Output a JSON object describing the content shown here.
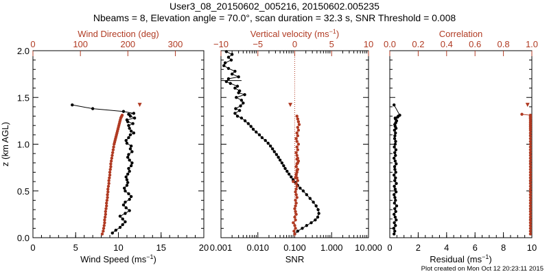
{
  "title_line1": "User3_08_20150602_005216, 20150602.005235",
  "title_line2": "Nbeams = 8, Elevation angle = 70.0°, scan duration = 32.3 s, SNR Threshold = 0.008",
  "footer": "Plot created on Mon Oct 12 20:23:11 2015",
  "colors": {
    "black": "#000000",
    "red": "#b03a22"
  },
  "chart_data": [
    {
      "type": "scatter",
      "name": "wind-panel",
      "ylabel": "z (km AGL)",
      "ylim": [
        0,
        2
      ],
      "yticks": [
        0.0,
        0.5,
        1.0,
        1.5,
        2.0
      ],
      "yticklabels": [
        "0.0",
        "0.5",
        "1.0",
        "1.5",
        "2.0"
      ],
      "bottom_axis": {
        "label": "Wind Speed (ms⁻¹)",
        "lim": [
          0,
          20
        ],
        "ticks": [
          0,
          5,
          10,
          15,
          20
        ],
        "ticklabels": [
          "0",
          "5",
          "10",
          "15",
          "20"
        ]
      },
      "top_axis": {
        "label": "Wind Direction (deg)",
        "lim": [
          0,
          360
        ],
        "ticks": [
          0,
          100,
          200,
          300
        ],
        "ticklabels": [
          "0",
          "100",
          "200",
          "300"
        ]
      },
      "series": [
        {
          "name": "Wind Speed",
          "axis": "bottom",
          "color": "black",
          "connected": true,
          "x": [
            9.3,
            9.7,
            10.2,
            10.5,
            10.8,
            10.5,
            10.2,
            10.8,
            11.3,
            10.9,
            10.6,
            10.8,
            11.3,
            11.5,
            11.2,
            10.8,
            10.7,
            11.0,
            11.1,
            11.0,
            10.9,
            11.1,
            11.3,
            11.2,
            11.5,
            11.6,
            11.3,
            11.1,
            11.2,
            11.6,
            11.4,
            11.5,
            11.0,
            10.9,
            11.2,
            11.4,
            11.8,
            11.5,
            11.3,
            11.2,
            11.7,
            11.1,
            11.0,
            11.9,
            11.4,
            11.2,
            11.8,
            10.6,
            7.0,
            4.6
          ],
          "y": [
            0.05,
            0.08,
            0.11,
            0.14,
            0.17,
            0.2,
            0.23,
            0.26,
            0.29,
            0.32,
            0.35,
            0.38,
            0.41,
            0.44,
            0.47,
            0.5,
            0.53,
            0.56,
            0.59,
            0.62,
            0.65,
            0.68,
            0.71,
            0.74,
            0.77,
            0.8,
            0.83,
            0.86,
            0.89,
            0.92,
            0.95,
            0.98,
            1.01,
            1.04,
            1.07,
            1.1,
            1.12,
            1.14,
            1.17,
            1.2,
            1.22,
            1.24,
            1.26,
            1.28,
            1.3,
            1.32,
            1.33,
            1.35,
            1.38,
            1.42
          ]
        },
        {
          "name": "Wind Direction",
          "axis": "top",
          "color": "red",
          "connected": false,
          "x": [
            146,
            148,
            149,
            150,
            151,
            151,
            152,
            153,
            153,
            154,
            155,
            155,
            156,
            157,
            157,
            158,
            158,
            159,
            160,
            160,
            161,
            162,
            162,
            163,
            164,
            164,
            165,
            166,
            167,
            168,
            169,
            170,
            171,
            172,
            173,
            174,
            175,
            176,
            177,
            178,
            179,
            180,
            181,
            182,
            183,
            184,
            185,
            186,
            187,
            188,
            225
          ],
          "y": [
            0.04,
            0.07,
            0.1,
            0.13,
            0.16,
            0.19,
            0.22,
            0.25,
            0.28,
            0.31,
            0.34,
            0.37,
            0.4,
            0.43,
            0.46,
            0.49,
            0.52,
            0.55,
            0.58,
            0.61,
            0.64,
            0.67,
            0.7,
            0.73,
            0.76,
            0.79,
            0.82,
            0.85,
            0.88,
            0.91,
            0.94,
            0.97,
            1.0,
            1.02,
            1.04,
            1.06,
            1.08,
            1.1,
            1.12,
            1.14,
            1.16,
            1.18,
            1.2,
            1.22,
            1.24,
            1.26,
            1.28,
            1.29,
            1.3,
            1.31,
            1.42
          ]
        }
      ]
    },
    {
      "type": "scatter",
      "name": "snr-panel",
      "ylim": [
        0,
        2
      ],
      "bottom_axis": {
        "label": "SNR",
        "scale": "log",
        "lim": [
          0.001,
          10
        ],
        "ticks": [
          0.001,
          0.01,
          0.1,
          1,
          10
        ],
        "ticklabels": [
          "0.001",
          "0.010",
          "0.100",
          "1.000",
          "10.000"
        ]
      },
      "top_axis": {
        "label": "Vertical velocity (ms⁻¹)",
        "lim": [
          -10,
          10
        ],
        "ticks": [
          -10,
          -5,
          0,
          5,
          10
        ],
        "ticklabels": [
          "−10",
          "−5",
          "0",
          "5",
          "10"
        ]
      },
      "zero_line": {
        "axis": "top",
        "value": 0,
        "color": "red",
        "style": "dotted"
      },
      "series": [
        {
          "name": "SNR",
          "axis": "bottom",
          "color": "black",
          "connected": true,
          "x": [
            0.1,
            0.12,
            0.16,
            0.21,
            0.28,
            0.36,
            0.42,
            0.45,
            0.43,
            0.38,
            0.32,
            0.26,
            0.21,
            0.17,
            0.14,
            0.12,
            0.105,
            0.09,
            0.08,
            0.07,
            0.062,
            0.055,
            0.05,
            0.045,
            0.04,
            0.036,
            0.032,
            0.028,
            0.025,
            0.022,
            0.019,
            0.016,
            0.013,
            0.011,
            0.009,
            0.0075,
            0.0065,
            0.0055,
            0.0045,
            0.0036,
            0.0028,
            0.0024,
            0.0032,
            0.0025,
            0.0034,
            0.004,
            0.0036,
            0.0026,
            0.0044,
            0.003,
            0.0032,
            0.0024,
            0.0028,
            0.0018,
            0.0014,
            0.0016,
            0.003,
            0.002,
            0.0024,
            0.0016,
            0.0012,
            0.0013,
            0.0019,
            0.0016,
            0.002,
            0.0014
          ],
          "y": [
            0.04,
            0.07,
            0.1,
            0.13,
            0.16,
            0.19,
            0.22,
            0.26,
            0.3,
            0.34,
            0.38,
            0.42,
            0.46,
            0.5,
            0.53,
            0.56,
            0.59,
            0.62,
            0.65,
            0.68,
            0.71,
            0.74,
            0.77,
            0.8,
            0.83,
            0.86,
            0.89,
            0.92,
            0.95,
            0.98,
            1.01,
            1.04,
            1.07,
            1.1,
            1.13,
            1.16,
            1.19,
            1.22,
            1.25,
            1.28,
            1.3,
            1.33,
            1.36,
            1.38,
            1.41,
            1.44,
            1.47,
            1.5,
            1.53,
            1.55,
            1.57,
            1.6,
            1.62,
            1.65,
            1.67,
            1.7,
            1.72,
            1.75,
            1.78,
            1.81,
            1.84,
            1.87,
            1.9,
            1.93,
            1.96,
            1.99
          ]
        },
        {
          "name": "Vertical velocity",
          "axis": "top",
          "color": "red",
          "connected": false,
          "x": [
            0.0,
            -0.1,
            0.1,
            0.0,
            -0.2,
            0.1,
            0.0,
            0.2,
            0.1,
            0.0,
            0.1,
            0.2,
            0.1,
            0.3,
            0.2,
            0.1,
            0.2,
            0.3,
            0.2,
            0.4,
            0.3,
            0.2,
            0.3,
            0.4,
            0.2,
            0.3,
            0.5,
            0.4,
            0.3,
            0.2,
            0.4,
            0.3,
            0.5,
            0.3,
            0.2,
            0.4,
            0.3,
            0.5,
            0.4,
            0.6,
            0.5,
            0.4,
            0.3,
            -0.2,
            0.1,
            0.2,
            0.3,
            0.2,
            0.4,
            0.3,
            -0.6
          ],
          "y": [
            0.04,
            0.07,
            0.1,
            0.13,
            0.16,
            0.19,
            0.22,
            0.25,
            0.28,
            0.31,
            0.34,
            0.37,
            0.4,
            0.43,
            0.46,
            0.49,
            0.52,
            0.55,
            0.58,
            0.61,
            0.64,
            0.67,
            0.7,
            0.73,
            0.76,
            0.79,
            0.82,
            0.85,
            0.88,
            0.91,
            0.94,
            0.97,
            1.0,
            1.03,
            1.06,
            1.09,
            1.12,
            1.15,
            1.18,
            1.21,
            1.24,
            1.27,
            1.3,
            0.6,
            0.64,
            0.68,
            0.72,
            0.76,
            0.8,
            0.84,
            1.42
          ]
        }
      ]
    },
    {
      "type": "scatter",
      "name": "residual-panel",
      "ylim": [
        0,
        2
      ],
      "bottom_axis": {
        "label": "Residual (ms⁻¹)",
        "lim": [
          0,
          10
        ],
        "ticks": [
          0,
          2,
          4,
          6,
          8,
          10
        ],
        "ticklabels": [
          "0",
          "2",
          "4",
          "6",
          "8",
          "10"
        ]
      },
      "top_axis": {
        "label": "Correlation",
        "lim": [
          0,
          1
        ],
        "ticks": [
          0,
          0.2,
          0.4,
          0.6,
          0.8,
          1.0
        ],
        "ticklabels": [
          "0.0",
          "0.2",
          "0.4",
          "0.6",
          "0.8",
          "1.0"
        ]
      },
      "series": [
        {
          "name": "Residual",
          "axis": "bottom",
          "color": "black",
          "connected": true,
          "x": [
            0.3,
            0.35,
            0.28,
            0.4,
            0.32,
            0.45,
            0.38,
            0.3,
            0.42,
            0.35,
            0.48,
            0.33,
            0.4,
            0.36,
            0.3,
            0.44,
            0.38,
            0.32,
            0.46,
            0.35,
            0.4,
            0.3,
            0.42,
            0.36,
            0.34,
            0.45,
            0.38,
            0.3,
            0.4,
            0.35,
            0.43,
            0.32,
            0.38,
            0.41,
            0.34,
            0.36,
            0.4,
            0.33,
            0.44,
            0.38,
            0.35,
            0.42,
            0.48,
            0.4,
            0.38,
            0.55,
            0.6,
            0.7,
            0.3
          ],
          "y": [
            0.04,
            0.07,
            0.1,
            0.13,
            0.16,
            0.19,
            0.22,
            0.25,
            0.28,
            0.31,
            0.34,
            0.37,
            0.4,
            0.43,
            0.46,
            0.49,
            0.52,
            0.55,
            0.58,
            0.61,
            0.64,
            0.67,
            0.7,
            0.73,
            0.76,
            0.79,
            0.82,
            0.85,
            0.88,
            0.91,
            0.94,
            0.97,
            1.0,
            1.03,
            1.06,
            1.09,
            1.12,
            1.15,
            1.17,
            1.19,
            1.21,
            1.23,
            1.25,
            1.27,
            1.28,
            1.29,
            1.3,
            1.31,
            1.42
          ]
        },
        {
          "name": "Correlation",
          "axis": "top",
          "color": "red",
          "connected": true,
          "x": [
            0.99,
            0.99,
            0.99,
            0.99,
            0.99,
            0.99,
            0.99,
            0.99,
            0.99,
            0.99,
            0.99,
            0.99,
            0.99,
            0.99,
            0.99,
            0.99,
            0.99,
            0.99,
            0.99,
            0.99,
            0.99,
            0.99,
            0.99,
            0.99,
            0.99,
            0.99,
            0.99,
            0.99,
            0.99,
            0.99,
            0.99,
            0.99,
            0.99,
            0.99,
            0.99,
            0.99,
            0.99,
            0.99,
            0.99,
            0.99,
            0.99,
            0.99,
            0.99,
            0.99,
            0.99,
            0.99,
            0.99,
            0.99,
            0.93
          ],
          "y": [
            0.04,
            0.07,
            0.1,
            0.13,
            0.16,
            0.19,
            0.22,
            0.25,
            0.28,
            0.31,
            0.34,
            0.37,
            0.4,
            0.43,
            0.46,
            0.49,
            0.52,
            0.55,
            0.58,
            0.61,
            0.64,
            0.67,
            0.7,
            0.73,
            0.76,
            0.79,
            0.82,
            0.85,
            0.88,
            0.91,
            0.94,
            0.97,
            1.0,
            1.03,
            1.06,
            1.09,
            1.12,
            1.15,
            1.17,
            1.19,
            1.21,
            1.23,
            1.25,
            1.27,
            1.28,
            1.29,
            1.3,
            1.31,
            1.32
          ]
        },
        {
          "name": "Correlation-top",
          "axis": "top",
          "color": "red",
          "connected": false,
          "marker": "triangle",
          "x": [
            0.97
          ],
          "y": [
            1.42
          ]
        }
      ]
    }
  ]
}
